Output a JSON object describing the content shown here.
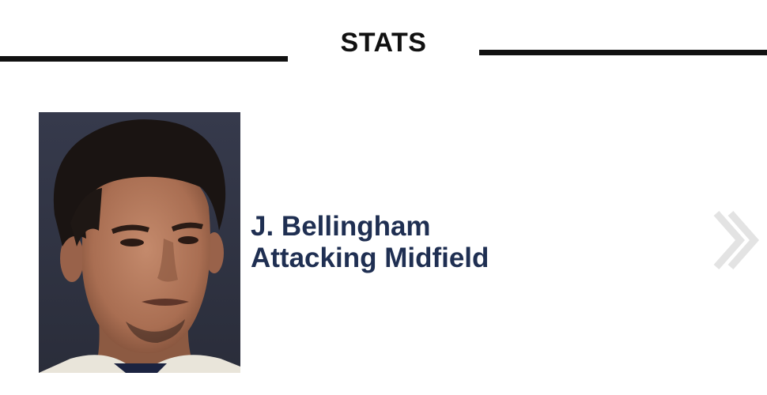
{
  "section": {
    "title": "STATS"
  },
  "player": {
    "name": "J. Bellingham",
    "position": "Attacking Midfield",
    "photo_icon": "player-portrait"
  },
  "navigation": {
    "next_icon": "double-chevron-right-icon"
  },
  "colors": {
    "title": "#111111",
    "rule": "#111111",
    "player_text": "#1f2f52",
    "chevron": "#e3e3e3"
  }
}
